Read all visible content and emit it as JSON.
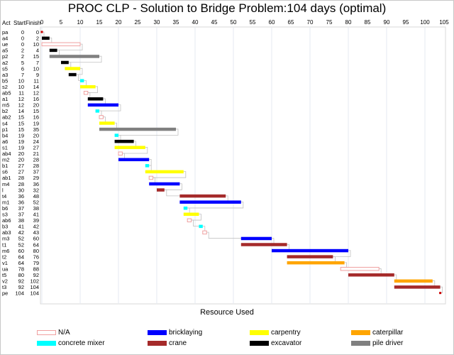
{
  "chart_data": {
    "type": "gantt",
    "title": "PROC CLP - Solution to Bridge Problem:104 days (optimal)",
    "columns": [
      "Act",
      "Start",
      "Finish"
    ],
    "xlim": [
      0,
      105
    ],
    "xticks": [
      0,
      5,
      10,
      15,
      20,
      25,
      30,
      35,
      40,
      45,
      50,
      55,
      60,
      65,
      70,
      75,
      80,
      85,
      90,
      95,
      100,
      105
    ],
    "grid": true,
    "legend_title": "Resource Used",
    "legend_position": "bottom",
    "resources": [
      {
        "name": "N/A",
        "color": "#ffffff",
        "border": "#f0a0a0"
      },
      {
        "name": "bricklaying",
        "color": "#0000ff"
      },
      {
        "name": "carpentry",
        "color": "#ffff00"
      },
      {
        "name": "caterpillar",
        "color": "#ffa500"
      },
      {
        "name": "concrete mixer",
        "color": "#00ffff"
      },
      {
        "name": "crane",
        "color": "#a52a2a"
      },
      {
        "name": "excavator",
        "color": "#000000"
      },
      {
        "name": "pile driver",
        "color": "#808080"
      }
    ],
    "tasks": [
      {
        "act": "pa",
        "start": 0,
        "finish": 0,
        "resource": "milestone"
      },
      {
        "act": "a4",
        "start": 0,
        "finish": 2,
        "resource": "excavator"
      },
      {
        "act": "ue",
        "start": 0,
        "finish": 10,
        "resource": "N/A"
      },
      {
        "act": "a5",
        "start": 2,
        "finish": 4,
        "resource": "excavator"
      },
      {
        "act": "p2",
        "start": 2,
        "finish": 15,
        "resource": "pile driver"
      },
      {
        "act": "a2",
        "start": 5,
        "finish": 7,
        "resource": "excavator"
      },
      {
        "act": "s5",
        "start": 6,
        "finish": 10,
        "resource": "carpentry"
      },
      {
        "act": "a3",
        "start": 7,
        "finish": 9,
        "resource": "excavator"
      },
      {
        "act": "b5",
        "start": 10,
        "finish": 11,
        "resource": "concrete mixer"
      },
      {
        "act": "s2",
        "start": 10,
        "finish": 14,
        "resource": "carpentry"
      },
      {
        "act": "ab5",
        "start": 11,
        "finish": 12,
        "resource": "N/A"
      },
      {
        "act": "a1",
        "start": 12,
        "finish": 16,
        "resource": "excavator"
      },
      {
        "act": "m5",
        "start": 12,
        "finish": 20,
        "resource": "bricklaying"
      },
      {
        "act": "b2",
        "start": 14,
        "finish": 15,
        "resource": "concrete mixer"
      },
      {
        "act": "ab2",
        "start": 15,
        "finish": 16,
        "resource": "N/A"
      },
      {
        "act": "s4",
        "start": 15,
        "finish": 19,
        "resource": "carpentry"
      },
      {
        "act": "p1",
        "start": 15,
        "finish": 35,
        "resource": "pile driver"
      },
      {
        "act": "b4",
        "start": 19,
        "finish": 20,
        "resource": "concrete mixer"
      },
      {
        "act": "a6",
        "start": 19,
        "finish": 24,
        "resource": "excavator"
      },
      {
        "act": "s1",
        "start": 19,
        "finish": 27,
        "resource": "carpentry"
      },
      {
        "act": "ab4",
        "start": 20,
        "finish": 21,
        "resource": "N/A"
      },
      {
        "act": "m2",
        "start": 20,
        "finish": 28,
        "resource": "bricklaying"
      },
      {
        "act": "b1",
        "start": 27,
        "finish": 28,
        "resource": "concrete mixer"
      },
      {
        "act": "s6",
        "start": 27,
        "finish": 37,
        "resource": "carpentry"
      },
      {
        "act": "ab1",
        "start": 28,
        "finish": 29,
        "resource": "N/A"
      },
      {
        "act": "m4",
        "start": 28,
        "finish": 36,
        "resource": "bricklaying"
      },
      {
        "act": "l",
        "start": 30,
        "finish": 32,
        "resource": "crane"
      },
      {
        "act": "t4",
        "start": 36,
        "finish": 48,
        "resource": "crane"
      },
      {
        "act": "m1",
        "start": 36,
        "finish": 52,
        "resource": "bricklaying"
      },
      {
        "act": "b6",
        "start": 37,
        "finish": 38,
        "resource": "concrete mixer"
      },
      {
        "act": "s3",
        "start": 37,
        "finish": 41,
        "resource": "carpentry"
      },
      {
        "act": "ab6",
        "start": 38,
        "finish": 39,
        "resource": "N/A"
      },
      {
        "act": "b3",
        "start": 41,
        "finish": 42,
        "resource": "concrete mixer"
      },
      {
        "act": "ab3",
        "start": 42,
        "finish": 43,
        "resource": "N/A"
      },
      {
        "act": "m3",
        "start": 52,
        "finish": 60,
        "resource": "bricklaying"
      },
      {
        "act": "t1",
        "start": 52,
        "finish": 64,
        "resource": "crane"
      },
      {
        "act": "m6",
        "start": 60,
        "finish": 80,
        "resource": "bricklaying"
      },
      {
        "act": "t2",
        "start": 64,
        "finish": 76,
        "resource": "crane"
      },
      {
        "act": "v1",
        "start": 64,
        "finish": 79,
        "resource": "caterpillar"
      },
      {
        "act": "ua",
        "start": 78,
        "finish": 88,
        "resource": "N/A"
      },
      {
        "act": "t5",
        "start": 80,
        "finish": 92,
        "resource": "crane"
      },
      {
        "act": "v2",
        "start": 92,
        "finish": 102,
        "resource": "caterpillar"
      },
      {
        "act": "t3",
        "start": 92,
        "finish": 104,
        "resource": "crane"
      },
      {
        "act": "pe",
        "start": 104,
        "finish": 104,
        "resource": "milestone"
      }
    ]
  }
}
